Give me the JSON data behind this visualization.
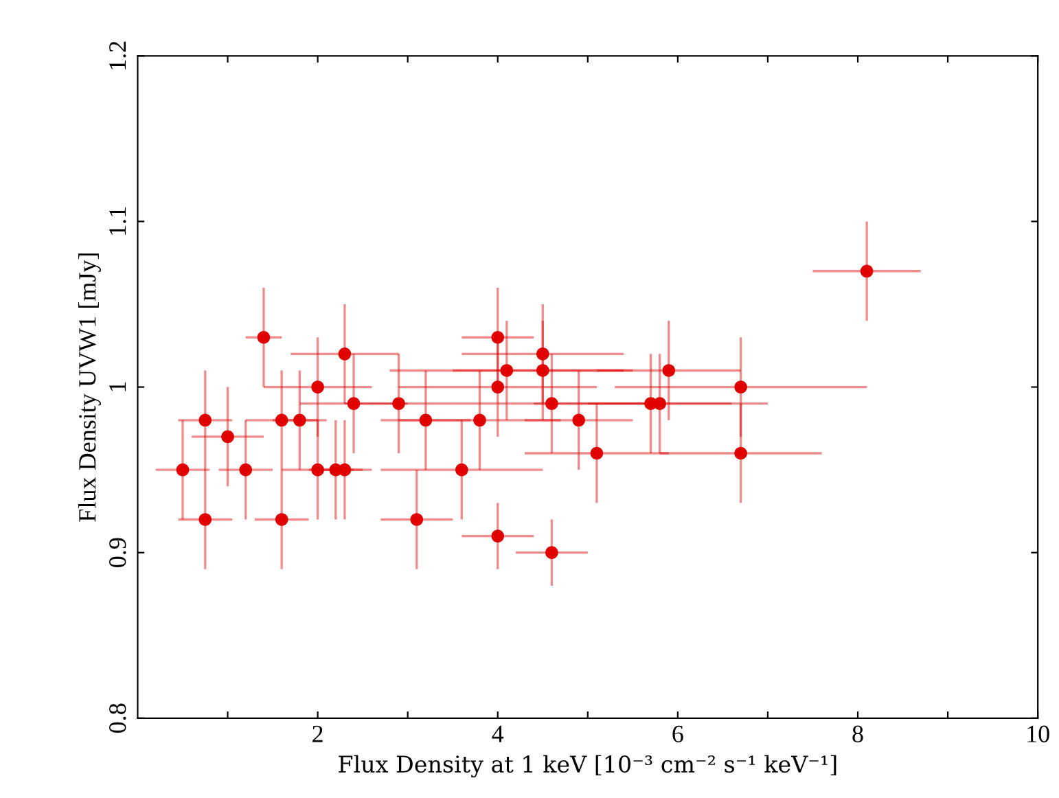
{
  "chart_data": {
    "type": "scatter",
    "xlabel": "Flux Density at 1 keV [10⁻³ cm⁻² s⁻¹ keV⁻¹]",
    "ylabel": "Flux Density UVW1 [mJy]",
    "xlim": [
      0,
      10
    ],
    "ylim": [
      0.8,
      1.2
    ],
    "xticks": [
      {
        "value": 1,
        "label": null
      },
      2,
      {
        "value": 3,
        "label": null
      },
      4,
      {
        "value": 5,
        "label": null
      },
      6,
      {
        "value": 7,
        "label": null
      },
      8,
      {
        "value": 9,
        "label": null
      },
      10
    ],
    "yticks": [
      0.8,
      0.9,
      1,
      1.1,
      1.2
    ],
    "grid": false,
    "marker": "circle",
    "series": [
      {
        "color": "#e00000",
        "x": [
          0.5,
          0.75,
          0.75,
          1.0,
          1.2,
          1.4,
          1.6,
          1.6,
          1.8,
          2.0,
          2.0,
          2.2,
          2.3,
          2.3,
          2.4,
          2.9,
          3.1,
          3.2,
          3.6,
          3.8,
          4.0,
          4.0,
          4.1,
          4.0,
          4.5,
          4.5,
          4.6,
          4.6,
          4.9,
          5.1,
          5.7,
          5.8,
          5.9,
          6.7,
          6.7,
          8.1
        ],
        "values": [
          0.95,
          0.98,
          0.92,
          0.97,
          0.95,
          1.03,
          0.98,
          0.92,
          0.98,
          1.0,
          0.95,
          0.95,
          0.95,
          1.02,
          0.99,
          0.99,
          0.92,
          0.98,
          0.95,
          0.98,
          1.03,
          1.0,
          1.01,
          0.91,
          1.02,
          1.01,
          0.99,
          0.9,
          0.98,
          0.96,
          0.99,
          0.99,
          1.01,
          1.0,
          0.96,
          1.07
        ],
        "xerrors": [
          0.3,
          0.3,
          0.3,
          0.4,
          0.3,
          0.2,
          0.4,
          0.3,
          0.3,
          0.6,
          0.4,
          0.3,
          0.3,
          0.6,
          0.6,
          0.6,
          0.4,
          0.5,
          0.9,
          0.9,
          0.4,
          1.1,
          1.3,
          0.4,
          0.9,
          1.0,
          1.1,
          0.4,
          0.6,
          0.8,
          1.3,
          0.8,
          0.8,
          1.4,
          0.9,
          0.6
        ],
        "errors": [
          0.03,
          0.03,
          0.03,
          0.03,
          0.03,
          0.03,
          0.03,
          0.03,
          0.03,
          0.03,
          0.03,
          0.03,
          0.03,
          0.03,
          0.03,
          0.03,
          0.03,
          0.03,
          0.03,
          0.03,
          0.03,
          0.03,
          0.03,
          0.02,
          0.03,
          0.03,
          0.03,
          0.02,
          0.03,
          0.03,
          0.03,
          0.03,
          0.03,
          0.03,
          0.03,
          0.03
        ]
      }
    ]
  }
}
